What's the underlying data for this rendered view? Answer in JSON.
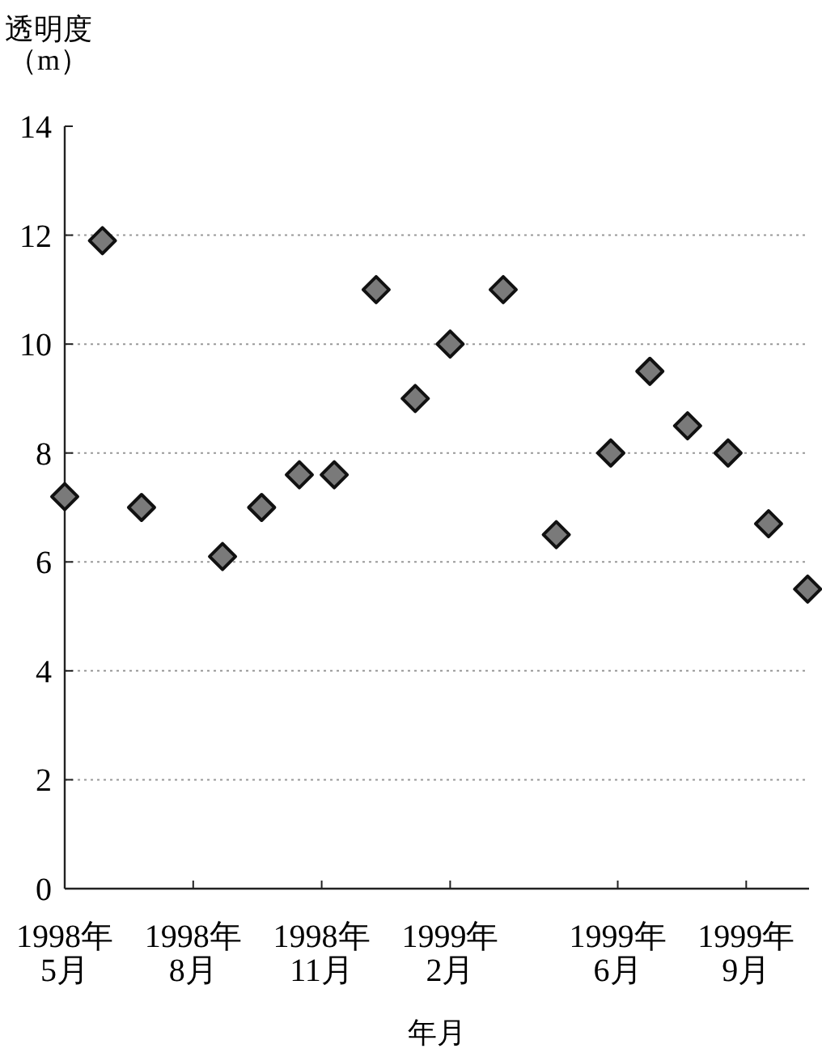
{
  "chart_data": {
    "type": "scatter",
    "xlabel": "年月",
    "ylabel": "透明度（m）",
    "x": [
      "1998-05-01",
      "1998-05-28",
      "1998-06-25",
      "1998-08-22",
      "1998-09-19",
      "1998-10-16",
      "1998-11-10",
      "1998-12-10",
      "1999-01-07",
      "1999-02-01",
      "1999-03-11",
      "1999-04-18",
      "1999-05-27",
      "1999-06-24",
      "1999-07-21",
      "1999-08-19",
      "1999-09-17",
      "1999-10-15"
    ],
    "series": [
      {
        "color": "#7a7a7a",
        "values": [
          7.2,
          11.9,
          7.0,
          6.1,
          7.0,
          7.6,
          7.6,
          11.0,
          9.0,
          10.0,
          11.0,
          6.5,
          8.0,
          9.5,
          8.5,
          8.0,
          6.7,
          5.5
        ]
      }
    ],
    "xlim": [
      "1998-05-01",
      "1999-10-16"
    ],
    "xticks": [
      {
        "value": "1998-05-01",
        "label": "1998年\n5月"
      },
      {
        "value": "1998-08-01",
        "label": "1998年\n8月"
      },
      {
        "value": "1998-11-01",
        "label": "1998年\n11月"
      },
      {
        "value": "1999-02-01",
        "label": "1999年\n2月"
      },
      {
        "value": "1999-06-01",
        "label": "1999年\n6月"
      },
      {
        "value": "1999-09-01",
        "label": "1999年\n9月"
      }
    ],
    "ylim": [
      0,
      14
    ],
    "yticks": [
      0,
      2,
      4,
      6,
      8,
      10,
      12,
      14
    ],
    "grid": "y",
    "marker": "diamond"
  }
}
